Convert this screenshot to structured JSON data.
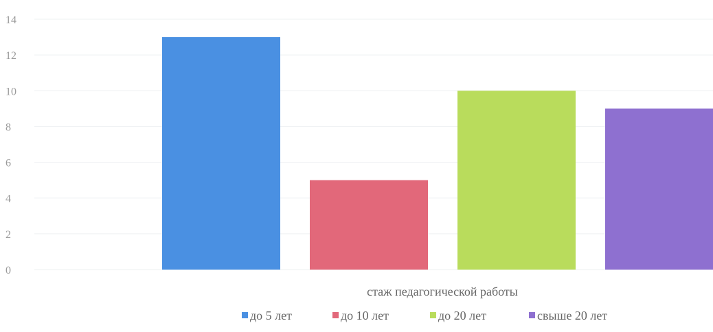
{
  "chart_data": {
    "type": "bar",
    "categories": [
      "стаж педагогической работы"
    ],
    "series": [
      {
        "name": "до 5 лет",
        "values": [
          13
        ],
        "color": "#4a90e2"
      },
      {
        "name": "до 10 лет",
        "values": [
          5
        ],
        "color": "#e2687a"
      },
      {
        "name": "до 20 лет",
        "values": [
          10
        ],
        "color": "#b9dc5c"
      },
      {
        "name": "свыше 20 лет",
        "values": [
          9
        ],
        "color": "#8e70d0"
      }
    ],
    "xlabel": "стаж педагогической работы",
    "ylabel": "",
    "ylim": [
      0,
      14
    ],
    "yticks": [
      0,
      2,
      4,
      6,
      8,
      10,
      12,
      14
    ],
    "grid": true,
    "legend_position": "bottom"
  }
}
